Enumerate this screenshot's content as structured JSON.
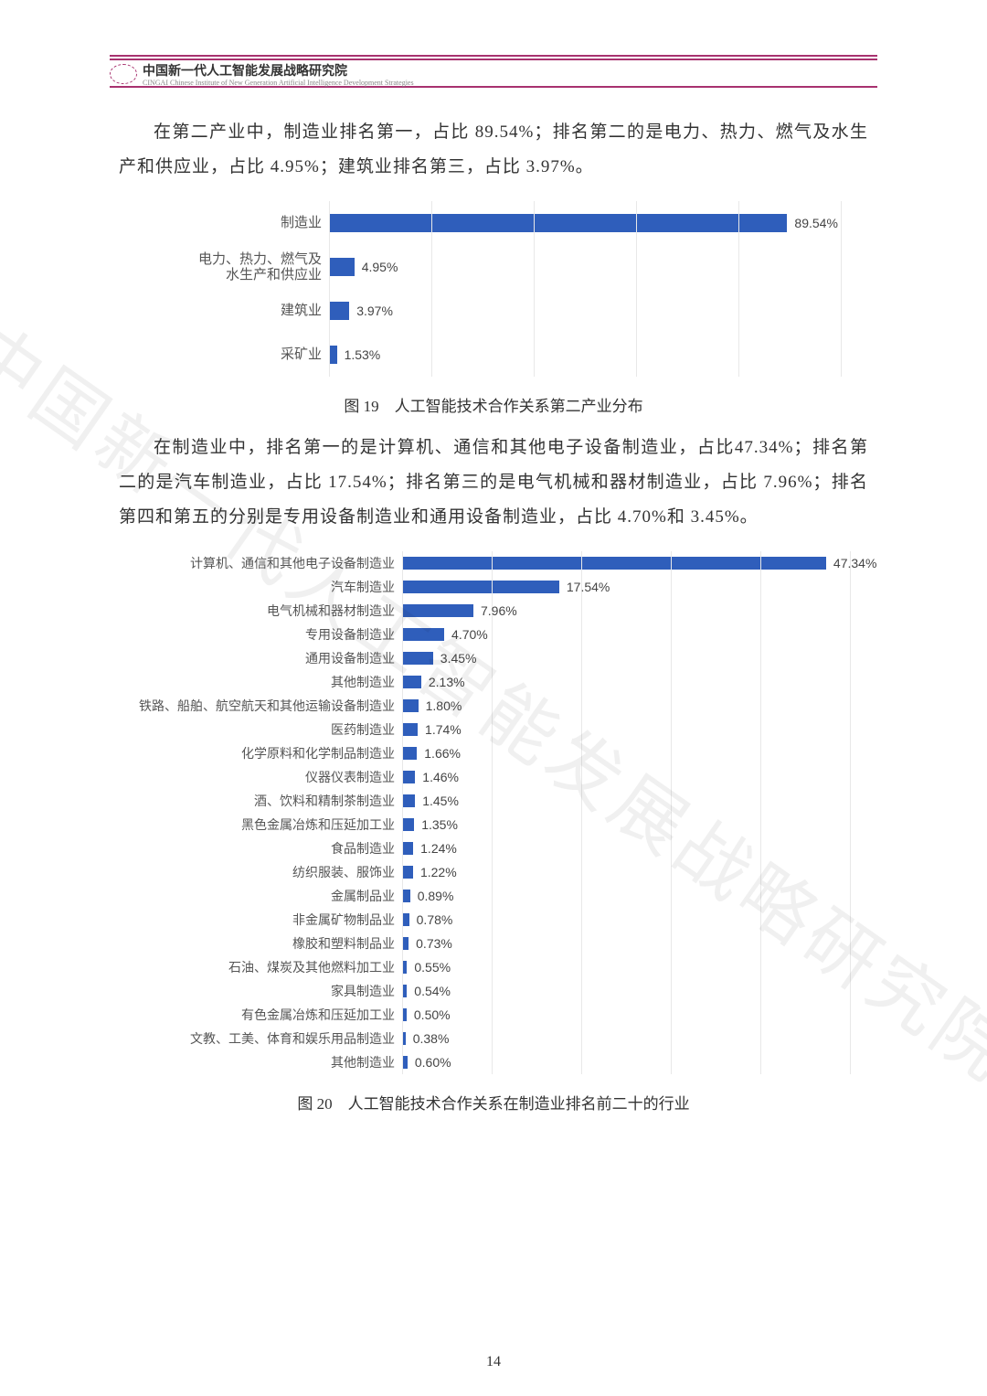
{
  "header": {
    "title_cn": "中国新一代人工智能发展战略研究院",
    "title_en": "CINGAI  Chinese Institute of New Generation Artificial Intelligence Development Strategies"
  },
  "watermark": "中国新一代人工智能发展战略研究院",
  "paragraph1": "在第二产业中，制造业排名第一，占比 89.54%；排名第二的是电力、热力、燃气及水生产和供应业，占比 4.95%；建筑业排名第三，占比 3.97%。",
  "chart19": {
    "type": "bar-horizontal",
    "bar_color": "#2f5ebb",
    "grid_color": "#e8e8e8",
    "max_value": 100,
    "grid_count": 6,
    "categories": [
      "制造业",
      "电力、热力、燃气及\n水生产和供应业",
      "建筑业",
      "采矿业"
    ],
    "values": [
      89.54,
      4.95,
      3.97,
      1.53
    ],
    "value_labels": [
      "89.54%",
      "4.95%",
      "3.97%",
      "1.53%"
    ]
  },
  "caption19": "图 19　人工智能技术合作关系第二产业分布",
  "paragraph2": "在制造业中，排名第一的是计算机、通信和其他电子设备制造业，占比47.34%；排名第二的是汽车制造业，占比 17.54%；排名第三的是电气机械和器材制造业，占比 7.96%；排名第四和第五的分别是专用设备制造业和通用设备制造业，占比 4.70%和 3.45%。",
  "chart20": {
    "type": "bar-horizontal",
    "bar_color": "#2f5ebb",
    "grid_color": "#e8e8e8",
    "max_value": 50,
    "grid_count": 6,
    "categories": [
      "计算机、通信和其他电子设备制造业",
      "汽车制造业",
      "电气机械和器材制造业",
      "专用设备制造业",
      "通用设备制造业",
      "其他制造业",
      "铁路、船舶、航空航天和其他运输设备制造业",
      "医药制造业",
      "化学原料和化学制品制造业",
      "仪器仪表制造业",
      "酒、饮料和精制茶制造业",
      "黑色金属冶炼和压延加工业",
      "食品制造业",
      "纺织服装、服饰业",
      "金属制品业",
      "非金属矿物制品业",
      "橡胶和塑料制品业",
      "石油、煤炭及其他燃料加工业",
      "家具制造业",
      "有色金属冶炼和压延加工业",
      "文教、工美、体育和娱乐用品制造业",
      "其他制造业"
    ],
    "values": [
      47.34,
      17.54,
      7.96,
      4.7,
      3.45,
      2.13,
      1.8,
      1.74,
      1.66,
      1.46,
      1.45,
      1.35,
      1.24,
      1.22,
      0.89,
      0.78,
      0.73,
      0.55,
      0.54,
      0.5,
      0.38,
      0.6
    ],
    "value_labels": [
      "47.34%",
      "17.54%",
      "7.96%",
      "4.70%",
      "3.45%",
      "2.13%",
      "1.80%",
      "1.74%",
      "1.66%",
      "1.46%",
      "1.45%",
      "1.35%",
      "1.24%",
      "1.22%",
      "0.89%",
      "0.78%",
      "0.73%",
      "0.55%",
      "0.54%",
      "0.50%",
      "0.38%",
      "0.60%"
    ]
  },
  "caption20": "图 20　人工智能技术合作关系在制造业排名前二十的行业",
  "page_number": "14"
}
